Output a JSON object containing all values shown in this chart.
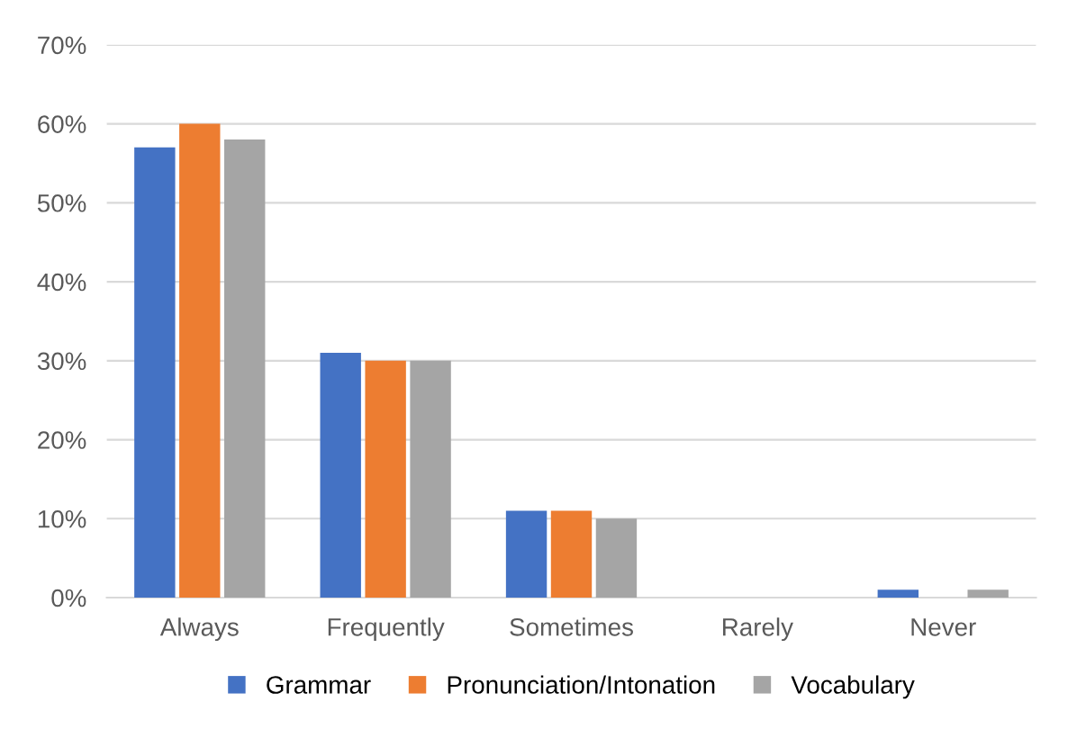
{
  "chart_data": {
    "type": "bar",
    "categories": [
      "Always",
      "Frequently",
      "Sometimes",
      "Rarely",
      "Never"
    ],
    "series": [
      {
        "name": "Grammar",
        "color": "#4472c4",
        "values": [
          57,
          31,
          11,
          0,
          1
        ]
      },
      {
        "name": "Pronunciation/Intonation",
        "color": "#ed7d31",
        "values": [
          60,
          30,
          11,
          0,
          0
        ]
      },
      {
        "name": "Vocabulary",
        "color": "#a5a5a5",
        "values": [
          58,
          30,
          10,
          0,
          1
        ]
      }
    ],
    "ylim": [
      0,
      70
    ],
    "yticks": [
      {
        "value": 0,
        "label": "0%"
      },
      {
        "value": 10,
        "label": "10%"
      },
      {
        "value": 20,
        "label": "20%"
      },
      {
        "value": 30,
        "label": "30%"
      },
      {
        "value": 40,
        "label": "40%"
      },
      {
        "value": 50,
        "label": "50%"
      },
      {
        "value": 60,
        "label": "60%"
      },
      {
        "value": 70,
        "label": "70%"
      }
    ],
    "grid": "y",
    "legend": "bottom"
  }
}
